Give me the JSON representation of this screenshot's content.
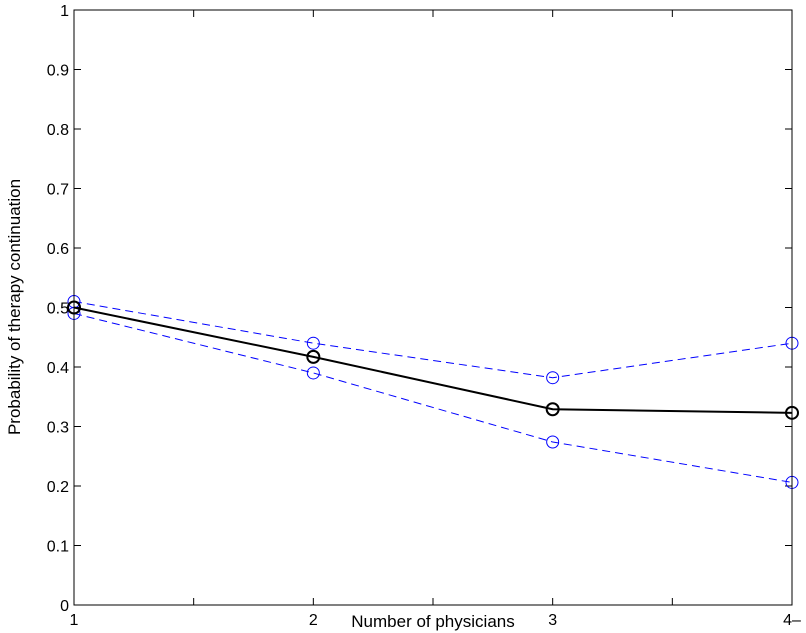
{
  "chart_data": {
    "type": "line",
    "xlabel": "Number of physicians",
    "ylabel": "Probability of therapy continuation",
    "x": [
      1,
      2,
      3,
      4
    ],
    "x_tick_labels": [
      "1",
      "2",
      "3",
      "4–"
    ],
    "xlim": [
      1,
      4
    ],
    "ylim": [
      0,
      1
    ],
    "y_ticks": [
      0,
      0.1,
      0.2,
      0.3,
      0.4,
      0.5,
      0.6,
      0.7,
      0.8,
      0.9,
      1
    ],
    "y_tick_labels": [
      "0",
      "0.1",
      "0.2",
      "0.3",
      "0.4",
      "0.5",
      "0.6",
      "0.7",
      "0.8",
      "0.9",
      "1"
    ],
    "grid": false,
    "series": [
      {
        "values": [
          0.5,
          0.417,
          0.329,
          0.323
        ],
        "color": "#000000",
        "style": "solid",
        "marker": "circle"
      },
      {
        "values": [
          0.51,
          0.44,
          0.382,
          0.44
        ],
        "color": "#0000ff",
        "style": "dashed",
        "marker": "circle"
      },
      {
        "values": [
          0.49,
          0.39,
          0.274,
          0.206
        ],
        "color": "#0000ff",
        "style": "dashed",
        "marker": "circle"
      }
    ]
  }
}
